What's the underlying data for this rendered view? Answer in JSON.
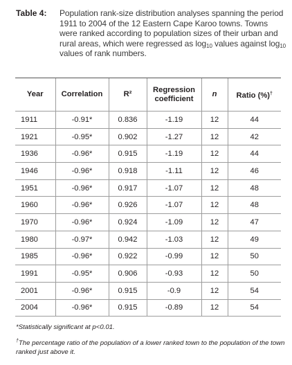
{
  "caption": {
    "label": "Table 4:",
    "text_before_log1": "Population rank-size distribution analyses spanning the period 1911 to 2004 of the 12 Eastern Cape Karoo towns. Towns were ranked according to population sizes of their urban and rural areas, which were regressed as log",
    "log_base": "10",
    "text_middle": " values against log",
    "text_after": " values of rank numbers."
  },
  "table": {
    "headers": {
      "year": "Year",
      "correlation": "Correlation",
      "r2": "R²",
      "regression": "Regression coefficient",
      "n": "n",
      "ratio": "Ratio (%)",
      "ratio_mark": "†"
    },
    "rows": [
      {
        "year": "1911",
        "correlation": "-0.91*",
        "r2": "0.836",
        "regression": "-1.19",
        "n": "12",
        "ratio": "44"
      },
      {
        "year": "1921",
        "correlation": "-0.95*",
        "r2": "0.902",
        "regression": "-1.27",
        "n": "12",
        "ratio": "42"
      },
      {
        "year": "1936",
        "correlation": "-0.96*",
        "r2": "0.915",
        "regression": "-1.19",
        "n": "12",
        "ratio": "44"
      },
      {
        "year": "1946",
        "correlation": "-0.96*",
        "r2": "0.918",
        "regression": "-1.11",
        "n": "12",
        "ratio": "46"
      },
      {
        "year": "1951",
        "correlation": "-0.96*",
        "r2": "0.917",
        "regression": "-1.07",
        "n": "12",
        "ratio": "48"
      },
      {
        "year": "1960",
        "correlation": "-0.96*",
        "r2": "0.926",
        "regression": "-1.07",
        "n": "12",
        "ratio": "48"
      },
      {
        "year": "1970",
        "correlation": "-0.96*",
        "r2": "0.924",
        "regression": "-1.09",
        "n": "12",
        "ratio": "47"
      },
      {
        "year": "1980",
        "correlation": "-0.97*",
        "r2": "0.942",
        "regression": "-1.03",
        "n": "12",
        "ratio": "49"
      },
      {
        "year": "1985",
        "correlation": "-0.96*",
        "r2": "0.922",
        "regression": "-0.99",
        "n": "12",
        "ratio": "50"
      },
      {
        "year": "1991",
        "correlation": "-0.95*",
        "r2": "0.906",
        "regression": "-0.93",
        "n": "12",
        "ratio": "50"
      },
      {
        "year": "2001",
        "correlation": "-0.96*",
        "r2": "0.915",
        "regression": "-0.9",
        "n": "12",
        "ratio": "54"
      },
      {
        "year": "2004",
        "correlation": "-0.96*",
        "r2": "0.915",
        "regression": "-0.89",
        "n": "12",
        "ratio": "54"
      }
    ]
  },
  "footnotes": {
    "significance": "*Statistically significant at p<0.01.",
    "ratio_mark": "†",
    "ratio_note": "The percentage ratio of the population of a lower ranked town to the population of the town ranked just above it."
  }
}
